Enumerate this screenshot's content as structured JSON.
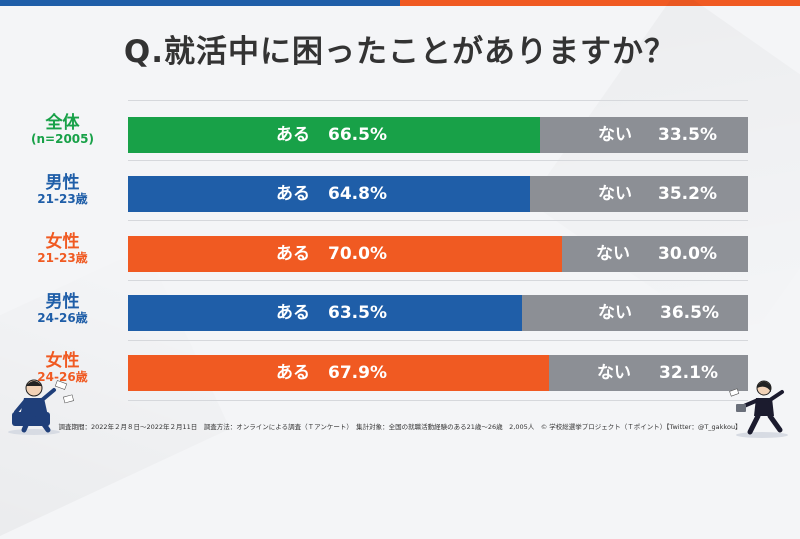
{
  "title": "Q.就活中に困ったことがありますか？",
  "colors": {
    "overall": "#18a148",
    "male": "#1f5ea8",
    "female": "#f05a22",
    "no": "#8c8f95"
  },
  "chart_data": {
    "type": "bar",
    "orientation": "horizontal",
    "stacked": true,
    "title": "Q.就活中に困ったことがありますか？",
    "categories": [
      "全体 (n=2005)",
      "男性 21-23歳",
      "女性 21-23歳",
      "男性 24-26歳",
      "女性 24-26歳"
    ],
    "series": [
      {
        "name": "ある",
        "values": [
          66.5,
          64.8,
          70.0,
          63.5,
          67.9
        ]
      },
      {
        "name": "ない",
        "values": [
          33.5,
          35.2,
          30.0,
          36.5,
          32.1
        ]
      }
    ],
    "xlim": [
      0,
      100
    ]
  },
  "rows": [
    {
      "label": "全体",
      "sub": "(n=2005)",
      "yes_label": "ある",
      "yes_value": "66.5%",
      "no_label": "ない",
      "no_value": "33.5%",
      "color": "#18a148"
    },
    {
      "label": "男性",
      "sub": "21-23歳",
      "yes_label": "ある",
      "yes_value": "64.8%",
      "no_label": "ない",
      "no_value": "35.2%",
      "color": "#1f5ea8"
    },
    {
      "label": "女性",
      "sub": "21-23歳",
      "yes_label": "ある",
      "yes_value": "70.0%",
      "no_label": "ない",
      "no_value": "30.0%",
      "color": "#f05a22"
    },
    {
      "label": "男性",
      "sub": "24-26歳",
      "yes_label": "ある",
      "yes_value": "63.5%",
      "no_label": "ない",
      "no_value": "36.5%",
      "color": "#1f5ea8"
    },
    {
      "label": "女性",
      "sub": "24-26歳",
      "yes_label": "ある",
      "yes_value": "67.9%",
      "no_label": "ない",
      "no_value": "32.1%",
      "color": "#f05a22"
    }
  ],
  "footer": "調査期間：2022年２月８日〜2022年２月11日　調査方法：オンラインによる調査（Ｔアンケート）　集計対象：全国の就職活動経験のある21歳〜26歳　2,005人　© 学校総選挙プロジェクト（Ｔポイント）【Twitter：@T_gakkou】"
}
